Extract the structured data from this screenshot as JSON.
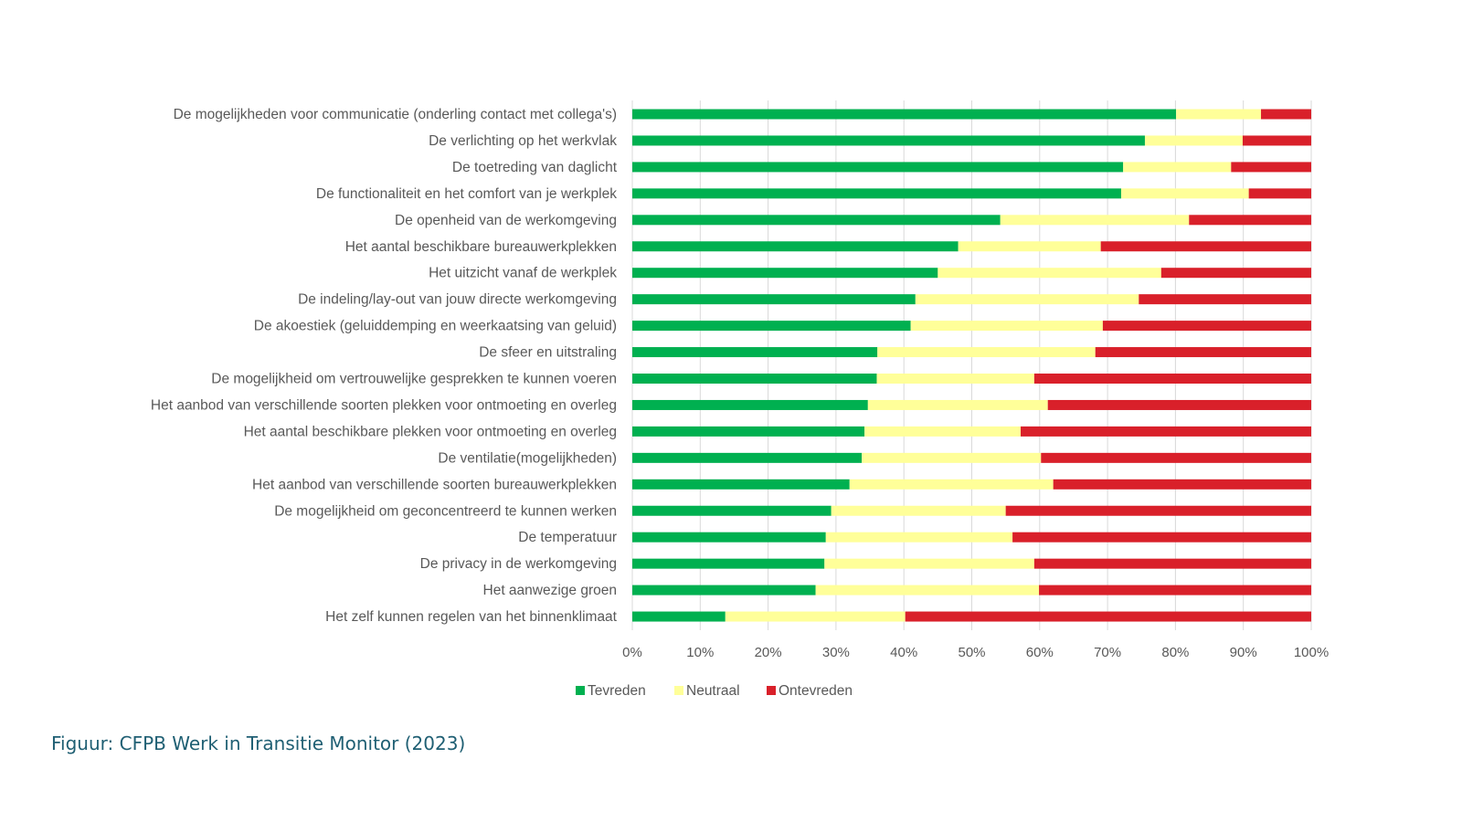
{
  "chart_data": {
    "type": "bar",
    "orientation": "horizontal",
    "stacked": "percent",
    "title": "",
    "xlabel": "",
    "ylabel": "",
    "xlim": [
      0,
      100
    ],
    "x_ticks": [
      "0%",
      "10%",
      "20%",
      "30%",
      "40%",
      "50%",
      "60%",
      "70%",
      "80%",
      "90%",
      "100%"
    ],
    "grid": "vertical",
    "legend_position": "bottom",
    "categories": [
      "De mogelijkheden voor communicatie (onderling contact met collega's)",
      "De verlichting op het werkvlak",
      "De toetreding van daglicht",
      "De functionaliteit en het comfort van je werkplek",
      "De openheid van de werkomgeving",
      "Het aantal beschikbare bureauwerkplekken",
      "Het uitzicht vanaf de werkplek",
      "De indeling/lay-out van jouw directe werkomgeving",
      "De akoestiek (geluiddemping en weerkaatsing van geluid)",
      "De sfeer en uitstraling",
      "De mogelijkheid om vertrouwelijke gesprekken te kunnen voeren",
      "Het aanbod van verschillende soorten plekken voor ontmoeting en overleg",
      "Het aantal beschikbare plekken voor ontmoeting en overleg",
      "De ventilatie(mogelijkheden)",
      "Het aanbod van verschillende soorten bureauwerkplekken",
      "De mogelijkheid om geconcentreerd te kunnen werken",
      "De temperatuur",
      "De privacy in de werkomgeving",
      "Het aanwezige groen",
      "Het zelf kunnen regelen van het binnenklimaat"
    ],
    "series": [
      {
        "name": "Tevreden",
        "color": "#00b050",
        "values": [
          80.1,
          75.5,
          72.3,
          72.0,
          54.2,
          48.0,
          45.0,
          41.7,
          41.0,
          36.1,
          36.0,
          34.7,
          34.2,
          33.8,
          32.0,
          29.3,
          28.5,
          28.3,
          27.0,
          13.7
        ]
      },
      {
        "name": "Neutraal",
        "color": "#ffff99",
        "values": [
          12.5,
          14.4,
          15.9,
          18.8,
          27.8,
          21.0,
          32.9,
          32.9,
          28.3,
          32.1,
          23.2,
          26.5,
          23.0,
          26.4,
          30.0,
          25.7,
          27.5,
          30.9,
          32.9,
          26.5
        ]
      },
      {
        "name": "Ontevreden",
        "color": "#d9202a",
        "values": [
          7.4,
          10.1,
          11.8,
          9.2,
          18.0,
          31.0,
          22.1,
          25.4,
          30.7,
          31.8,
          40.8,
          38.8,
          42.8,
          39.8,
          38.0,
          45.0,
          44.0,
          40.8,
          40.1,
          59.8
        ]
      }
    ]
  },
  "caption": "Figuur: CFPB Werk in Transitie Monitor (2023)"
}
